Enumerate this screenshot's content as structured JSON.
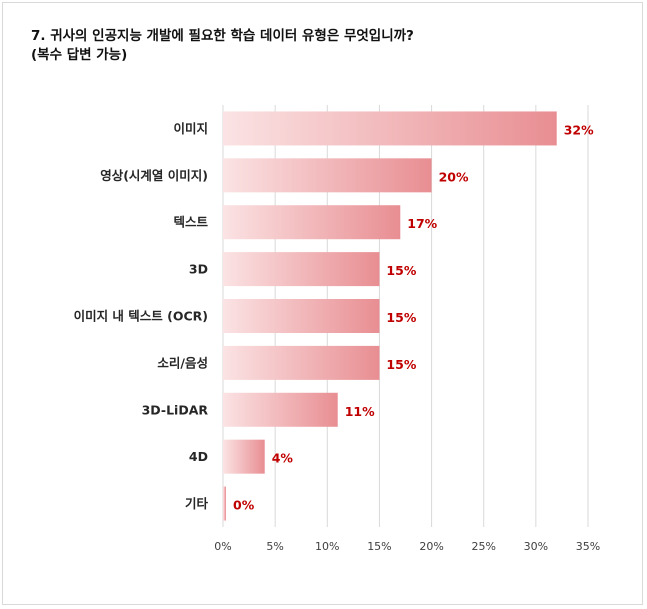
{
  "chart_data": {
    "type": "bar",
    "orientation": "horizontal",
    "title": "7. 귀사의 인공지능 개발에 필요한 학습 데이터 유형은 무엇입니까?",
    "subtitle": "(복수 답변 가능)",
    "categories": [
      "이미지",
      "영상(시계열 이미지)",
      "텍스트",
      "3D",
      "이미지 내 텍스트 (OCR)",
      "소리/음성",
      "3D-LiDAR",
      "4D",
      "기타"
    ],
    "values": [
      32,
      20,
      17,
      15,
      15,
      15,
      11,
      4,
      0
    ],
    "value_labels": [
      "32%",
      "20%",
      "17%",
      "15%",
      "15%",
      "15%",
      "11%",
      "4%",
      "0%"
    ],
    "xlim": [
      0,
      35
    ],
    "x_ticks": [
      "0%",
      "5%",
      "10%",
      "15%",
      "20%",
      "25%",
      "30%",
      "35%"
    ],
    "grid": true,
    "legend": "none",
    "bar_color_start": "#fbe3e4",
    "bar_color_end": "#e88e92",
    "label_color": "#c00000"
  }
}
